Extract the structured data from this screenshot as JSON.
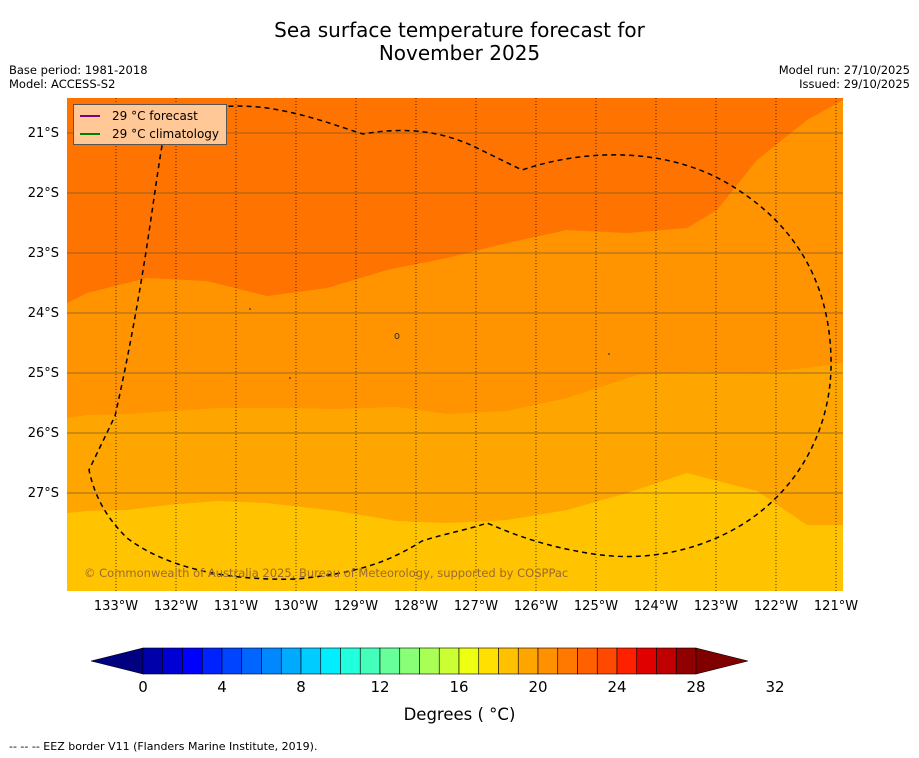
{
  "title_line1": "Sea surface temperature forecast for",
  "title_line2": "November 2025",
  "base_period": "Base period: 1981-2018",
  "model": "Model: ACCESS-S2",
  "model_run": "Model run: 27/10/2025",
  "issued": "Issued: 29/10/2025",
  "legend": {
    "forecast_label": "29 °C  forecast",
    "climatology_label": "29 °C  climatology",
    "forecast_color": "#800080",
    "climatology_color": "#008000"
  },
  "lat_labels": [
    "21°S",
    "22°S",
    "23°S",
    "24°S",
    "25°S",
    "26°S",
    "27°S"
  ],
  "lon_labels": [
    "133°W",
    "132°W",
    "131°W",
    "130°W",
    "129°W",
    "128°W",
    "127°W",
    "126°W",
    "125°W",
    "124°W",
    "123°W",
    "122°W",
    "121°W"
  ],
  "copyright": "© Commonwealth of Australia 2025, Bureau of Meteorology, supported by COSPPac",
  "colorbar": {
    "ticks": [
      "0",
      "4",
      "8",
      "12",
      "16",
      "20",
      "24",
      "28",
      "32"
    ],
    "label": "Degrees ( °C)",
    "colors": [
      "#000080",
      "#0000aa",
      "#0000d4",
      "#0000ff",
      "#0022ff",
      "#0044ff",
      "#0066ff",
      "#0088ff",
      "#00aaff",
      "#00ccff",
      "#00eeff",
      "#22ffdd",
      "#44ffbb",
      "#66ff99",
      "#88ff77",
      "#aaff55",
      "#ccff33",
      "#eeff11",
      "#ffe000",
      "#ffc000",
      "#ffa500",
      "#ff9000",
      "#ff7800",
      "#ff6000",
      "#ff4800",
      "#ff2000",
      "#e00000",
      "#c00000",
      "#900000",
      "#800000"
    ]
  },
  "map_colors": {
    "band_26_27": "#ffc300",
    "band_27_28": "#ffa500",
    "band_28_29": "#ff9400",
    "band_29_30": "#ff7300"
  },
  "footer": "--  --  -- EEZ border V11 (Flanders Marine Institute, 2019)."
}
